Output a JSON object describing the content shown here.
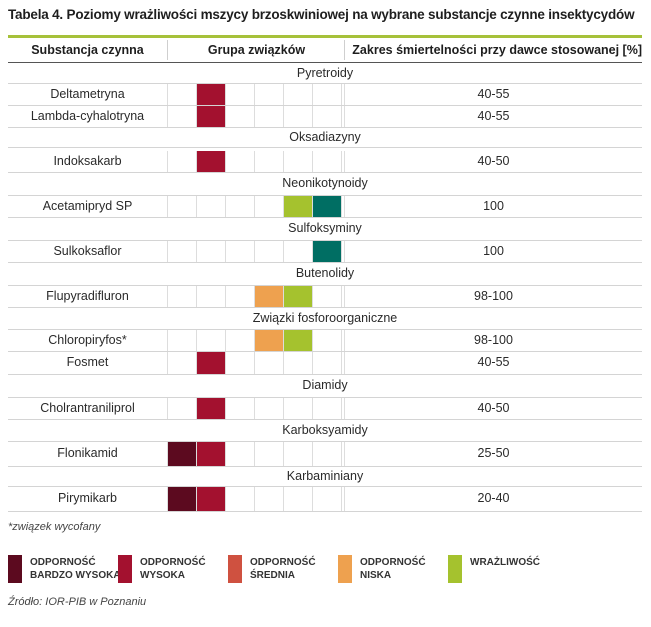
{
  "title": "Tabela 4. Poziomy wrażliwości mszycy brzoskwiniowej na wybrane substancje czynne insektycydów",
  "headers": {
    "substance": "Substancja czynna",
    "group": "Grupa związków",
    "range": "Zakres śmiertelności przy dawce stosowanej [%]"
  },
  "colors": {
    "bardzo_wysoka": "#5c0a1f",
    "wysoka": "#a3112f",
    "srednia": "#cf5140",
    "niska": "#eea14f",
    "wrazliwosc": "#a5c22e",
    "teal": "#006e63"
  },
  "categories": [
    "Pyretroidy",
    "Oksadiazyny",
    "Neonikotynoidy",
    "Sulfoksyminy",
    "Butenolidy",
    "Związki fosforoorganiczne",
    "Diamidy",
    "Karboksyamidy",
    "Karbaminiany"
  ],
  "rows": [
    {
      "name": "Deltametryna",
      "value": "40-55"
    },
    {
      "name": "Lambda-cyhalotryna",
      "value": "40-55"
    },
    {
      "name": "Indoksakarb",
      "value": "40-50"
    },
    {
      "name": "Acetamipryd SP",
      "value": "100"
    },
    {
      "name": "Sulkoksaflor",
      "value": "100"
    },
    {
      "name": "Flupyradifluron",
      "value": "98-100"
    },
    {
      "name": "Chloropiryfos*",
      "value": "98-100"
    },
    {
      "name": "Fosmet",
      "value": "40-55"
    },
    {
      "name": "Cholrantraniliprol",
      "value": "40-50"
    },
    {
      "name": "Flonikamid",
      "value": "25-50"
    },
    {
      "name": "Pirymikarb",
      "value": "20-40"
    }
  ],
  "note": "*związek wycofany",
  "legend": [
    {
      "line1": "ODPORNOŚĆ",
      "line2": "BARDZO WYSOKA",
      "color": "#5c0a1f"
    },
    {
      "line1": "ODPORNOŚĆ",
      "line2": "WYSOKA",
      "color": "#a3112f"
    },
    {
      "line1": "ODPORNOŚĆ",
      "line2": "ŚREDNIA",
      "color": "#cf5140"
    },
    {
      "line1": "ODPORNOŚĆ",
      "line2": "NISKA",
      "color": "#eea14f"
    },
    {
      "line1": "WRAŻLIWOŚĆ",
      "line2": "",
      "color": "#a5c22e"
    }
  ],
  "source": "Źródło: IOR-PIB w Poznaniu"
}
